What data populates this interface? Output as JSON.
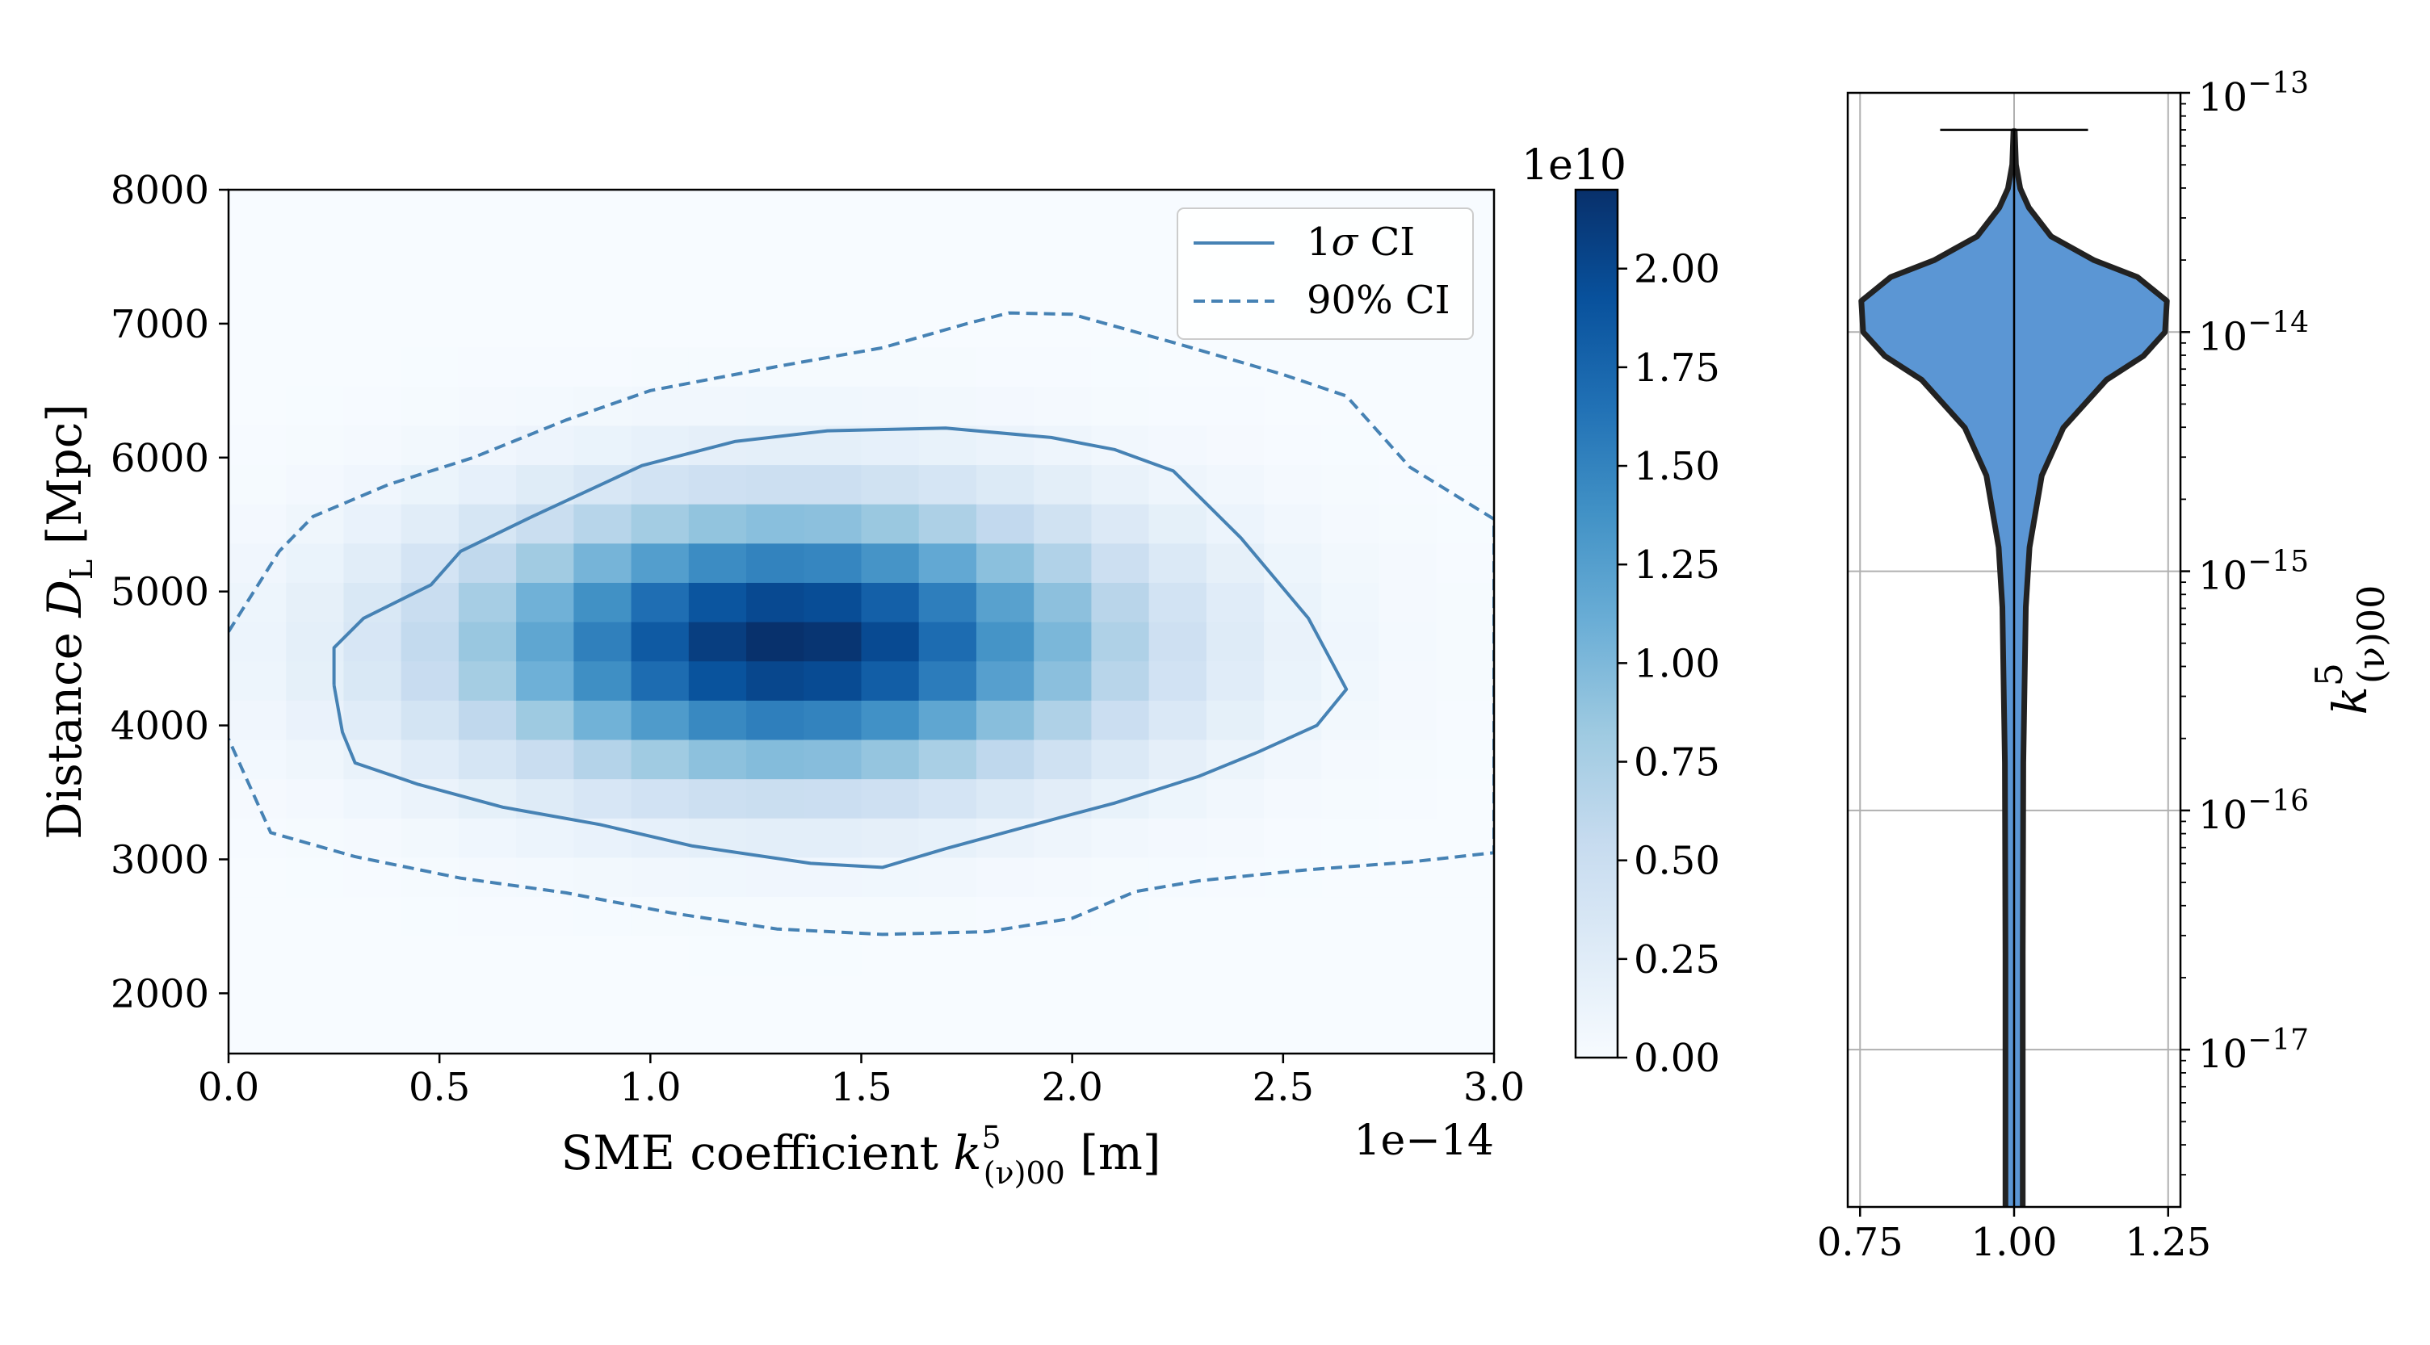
{
  "chart_data": [
    {
      "type": "heatmap",
      "title": "",
      "xlabel": "SME coefficient  k^5_(ν)00 [m]",
      "xlabel_parts": {
        "prefix": "SME coefficient  ",
        "symbol": "k",
        "superscript": "5",
        "subscript": "(ν)00",
        "suffix": " [m]"
      },
      "ylabel": "Distance  D_L [Mpc]",
      "ylabel_parts": {
        "prefix": "Distance  ",
        "symbol": "D",
        "subscript": "L",
        "suffix": " [Mpc]"
      },
      "x_offset_label": "1e−14",
      "xlim": [
        0,
        3.0
      ],
      "ylim": [
        1550,
        8000
      ],
      "x_ticks": [
        0,
        0.5,
        1.0,
        1.5,
        2.0,
        2.5,
        3.0
      ],
      "x_tick_labels": [
        "0.0",
        "0.5",
        "1.0",
        "1.5",
        "2.0",
        "2.5",
        "3.0"
      ],
      "y_ticks": [
        2000,
        3000,
        4000,
        5000,
        6000,
        7000,
        8000
      ],
      "y_tick_labels": [
        "2000",
        "3000",
        "4000",
        "5000",
        "6000",
        "7000",
        "8000"
      ],
      "density_peak": {
        "x": 1.33,
        "y": 4620,
        "value": 2.2
      },
      "density_spread": {
        "sx": 0.52,
        "sy": 680
      },
      "bins": {
        "nx": 22,
        "ny": 22
      },
      "contours": [
        {
          "name": "1σ CI",
          "legend_prefix": "1",
          "legend_symbol": "σ",
          "legend_suffix": " CI",
          "style": "solid",
          "points": [
            [
              0.25,
              4300
            ],
            [
              0.25,
              4580
            ],
            [
              0.32,
              4800
            ],
            [
              0.48,
              5050
            ],
            [
              0.55,
              5300
            ],
            [
              0.72,
              5560
            ],
            [
              0.98,
              5940
            ],
            [
              1.2,
              6120
            ],
            [
              1.42,
              6200
            ],
            [
              1.7,
              6220
            ],
            [
              1.95,
              6150
            ],
            [
              2.1,
              6060
            ],
            [
              2.24,
              5900
            ],
            [
              2.4,
              5400
            ],
            [
              2.56,
              4800
            ],
            [
              2.65,
              4270
            ],
            [
              2.58,
              4000
            ],
            [
              2.44,
              3800
            ],
            [
              2.3,
              3620
            ],
            [
              2.1,
              3420
            ],
            [
              1.98,
              3320
            ],
            [
              1.7,
              3080
            ],
            [
              1.55,
              2940
            ],
            [
              1.38,
              2970
            ],
            [
              1.1,
              3100
            ],
            [
              0.88,
              3260
            ],
            [
              0.65,
              3390
            ],
            [
              0.45,
              3560
            ],
            [
              0.3,
              3720
            ],
            [
              0.27,
              3950
            ],
            [
              0.25,
              4300
            ]
          ]
        },
        {
          "name": "90% CI",
          "legend_prefix": "90% CI",
          "legend_symbol": "",
          "legend_suffix": "",
          "style": "dashed",
          "points": [
            [
              0,
              4700
            ],
            [
              0.05,
              4950
            ],
            [
              0.12,
              5300
            ],
            [
              0.2,
              5560
            ],
            [
              0.38,
              5800
            ],
            [
              0.58,
              6000
            ],
            [
              0.8,
              6280
            ],
            [
              1.0,
              6500
            ],
            [
              1.3,
              6680
            ],
            [
              1.55,
              6820
            ],
            [
              1.75,
              7000
            ],
            [
              1.85,
              7080
            ],
            [
              2.0,
              7070
            ],
            [
              2.25,
              6850
            ],
            [
              2.5,
              6620
            ],
            [
              2.65,
              6460
            ],
            [
              2.8,
              5930
            ],
            [
              3.0,
              5540
            ],
            [
              3.0,
              3050
            ],
            [
              2.8,
              2980
            ],
            [
              2.55,
              2920
            ],
            [
              2.3,
              2840
            ],
            [
              2.15,
              2760
            ],
            [
              2.0,
              2560
            ],
            [
              1.8,
              2460
            ],
            [
              1.55,
              2440
            ],
            [
              1.3,
              2480
            ],
            [
              1.05,
              2600
            ],
            [
              0.8,
              2750
            ],
            [
              0.55,
              2860
            ],
            [
              0.3,
              3020
            ],
            [
              0.1,
              3200
            ],
            [
              0,
              3900
            ]
          ]
        }
      ],
      "colorbar": {
        "label": "1e10",
        "ticks": [
          "0.00",
          "0.25",
          "0.50",
          "0.75",
          "1.00",
          "1.25",
          "1.50",
          "1.75",
          "2.00"
        ],
        "tick_values": [
          0,
          0.25,
          0.5,
          0.75,
          1.0,
          1.25,
          1.5,
          1.75,
          2.0
        ],
        "range": [
          0,
          2.2
        ],
        "colormap": "Blues"
      },
      "legend": {
        "position": "top-right"
      },
      "colors": {
        "contour": "#4682b4",
        "dark": "#08306b",
        "light": "#f7fbff"
      }
    },
    {
      "type": "violin",
      "title": "",
      "ylabel": "k^5_(ν)00",
      "ylabel_parts": {
        "symbol": "k",
        "superscript": "5",
        "subscript": "(ν)00"
      },
      "yscale": "log",
      "ylim": [
        2.2e-18,
        1e-13
      ],
      "xlim": [
        0.73,
        1.27
      ],
      "x_ticks": [
        0.75,
        1.0,
        1.25
      ],
      "x_tick_labels": [
        "0.75",
        "1.00",
        "1.25"
      ],
      "y_ticks": [
        1e-13,
        1e-14,
        1e-15,
        1e-16,
        1e-17
      ],
      "y_tick_labels": [
        {
          "base": "10",
          "exp": "−13"
        },
        {
          "base": "10",
          "exp": "−14"
        },
        {
          "base": "10",
          "exp": "−15"
        },
        {
          "base": "10",
          "exp": "−16"
        },
        {
          "base": "10",
          "exp": "−17"
        }
      ],
      "y_axis_side": "right",
      "grid": true,
      "position": 1.0,
      "max_value": 7e-14,
      "max_cap_width": 0.12,
      "profile": [
        {
          "log10": -17.65,
          "half_width": 0.014
        },
        {
          "log10": -16.6,
          "half_width": 0.014
        },
        {
          "log10": -15.8,
          "half_width": 0.015
        },
        {
          "log10": -15.15,
          "half_width": 0.019
        },
        {
          "log10": -14.9,
          "half_width": 0.025
        },
        {
          "log10": -14.6,
          "half_width": 0.045
        },
        {
          "log10": -14.4,
          "half_width": 0.08
        },
        {
          "log10": -14.2,
          "half_width": 0.15
        },
        {
          "log10": -14.1,
          "half_width": 0.21
        },
        {
          "log10": -14.0,
          "half_width": 0.245
        },
        {
          "log10": -13.87,
          "half_width": 0.248
        },
        {
          "log10": -13.77,
          "half_width": 0.2
        },
        {
          "log10": -13.7,
          "half_width": 0.13
        },
        {
          "log10": -13.6,
          "half_width": 0.06
        },
        {
          "log10": -13.48,
          "half_width": 0.024
        },
        {
          "log10": -13.4,
          "half_width": 0.01
        },
        {
          "log10": -13.3,
          "half_width": 0.003
        },
        {
          "log10": -13.16,
          "half_width": 0.001
        }
      ],
      "colors": {
        "fill": "#5b96d4",
        "edge": "#222222"
      }
    }
  ]
}
